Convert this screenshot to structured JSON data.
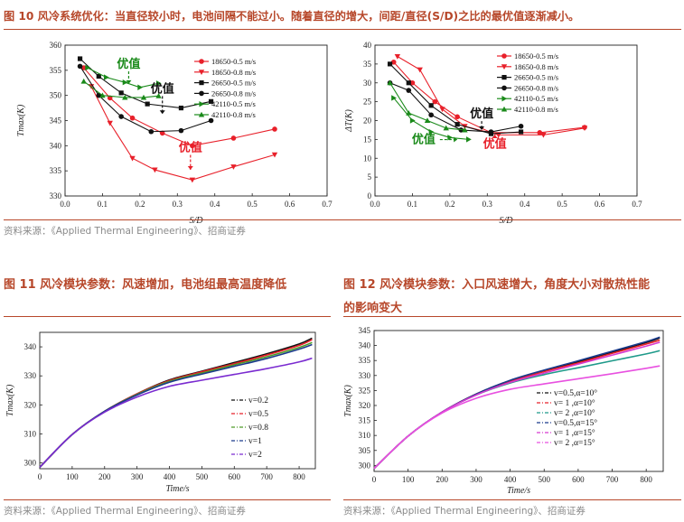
{
  "fig10": {
    "title": "图 10  风冷系统优化：当直径较小时，电池间隔不能过小。随着直径的增大，间距/直径(S/D)之比的最优值逐渐减小。",
    "source": "资料来源：《Applied Thermal Engineering》、招商证券"
  },
  "fig11": {
    "title": "图 11 风冷模块参数：风速增加，电池组最高温度降低",
    "source": "资料来源：《Applied Thermal Engineering》、招商证券"
  },
  "fig12": {
    "title_line1": "图 12 风冷模块参数：入口风速增大，角度大小对散热性能",
    "title_line2": "的影响变大",
    "source": "资料来源：《Applied Thermal Engineering》、招商证券"
  },
  "chart_data": [
    {
      "id": "c10a",
      "type": "line",
      "xlabel": "S/D",
      "ylabel": "Tmax(K)",
      "xlim": [
        0,
        0.7
      ],
      "ylim": [
        330,
        360
      ],
      "xticks": [
        0.0,
        0.1,
        0.2,
        0.3,
        0.4,
        0.5,
        0.6,
        0.7
      ],
      "xtick_labels": [
        "0.0",
        "0.1",
        "0.2",
        "0.3",
        "0.4",
        "0.5",
        "0.6",
        "0.7"
      ],
      "yticks": [
        330,
        335,
        340,
        345,
        350,
        355,
        360
      ],
      "ytick_labels": [
        "330",
        "335",
        "340",
        "345",
        "350",
        "355",
        "360"
      ],
      "annotations": [
        {
          "text": "优值",
          "x": 0.17,
          "y": 355.5,
          "color": "#1a8a1a",
          "arrow_to_y": 352.3
        },
        {
          "text": "优值",
          "x": 0.26,
          "y": 350.6,
          "color": "#111111",
          "arrow_to_y": 346.3
        },
        {
          "text": "优值",
          "x": 0.335,
          "y": 338.9,
          "color": "#e8202a",
          "arrow_to_y": 335.2
        }
      ],
      "series": [
        {
          "name": "18650-0.5 m/s",
          "color": "#e8202a",
          "marker": "circle",
          "x": [
            0.05,
            0.12,
            0.18,
            0.26,
            0.34,
            0.45,
            0.56
          ],
          "y": [
            355.5,
            349.5,
            345.5,
            342.5,
            340.0,
            341.5,
            343.3
          ]
        },
        {
          "name": "18650-0.8 m/s",
          "color": "#e8202a",
          "marker": "tri-down",
          "x": [
            0.07,
            0.12,
            0.18,
            0.24,
            0.34,
            0.45,
            0.56
          ],
          "y": [
            351.8,
            344.5,
            337.5,
            335.2,
            333.2,
            335.8,
            338.2
          ]
        },
        {
          "name": "26650-0.5 m/s",
          "color": "#111111",
          "marker": "square",
          "x": [
            0.04,
            0.09,
            0.15,
            0.22,
            0.31,
            0.39
          ],
          "y": [
            357.3,
            353.8,
            350.5,
            348.3,
            347.5,
            348.8
          ]
        },
        {
          "name": "26650-0.8 m/s",
          "color": "#111111",
          "marker": "circle",
          "x": [
            0.04,
            0.09,
            0.15,
            0.23,
            0.31,
            0.39
          ],
          "y": [
            355.8,
            350.0,
            345.8,
            342.8,
            343.0,
            345.0
          ]
        },
        {
          "name": "42110-0.5 m/s",
          "color": "#1a8a1a",
          "marker": "tri-right",
          "x": [
            0.06,
            0.11,
            0.16,
            0.2,
            0.25
          ],
          "y": [
            355.5,
            353.6,
            352.6,
            351.6,
            352.4
          ]
        },
        {
          "name": "42110-0.8 m/s",
          "color": "#1a8a1a",
          "marker": "tri-up",
          "x": [
            0.05,
            0.1,
            0.16,
            0.21,
            0.25
          ],
          "y": [
            352.8,
            350.0,
            349.6,
            349.6,
            349.9
          ]
        }
      ]
    },
    {
      "id": "c10b",
      "type": "line",
      "xlabel": "S/D",
      "ylabel": "ΔT(K)",
      "xlim": [
        0,
        0.7
      ],
      "ylim": [
        0,
        40
      ],
      "xticks": [
        0.0,
        0.1,
        0.2,
        0.3,
        0.4,
        0.5,
        0.6,
        0.7
      ],
      "xtick_labels": [
        "0.0",
        "0.1",
        "0.2",
        "0.3",
        "0.4",
        "0.5",
        "0.6",
        "0.7"
      ],
      "yticks": [
        0,
        5,
        10,
        15,
        20,
        25,
        30,
        35,
        40
      ],
      "ytick_labels": [
        "0",
        "5",
        "10",
        "15",
        "20",
        "25",
        "30",
        "35",
        "40"
      ],
      "annotations": [
        {
          "text": "优值",
          "x": 0.13,
          "y": 14.0,
          "color": "#1a8a1a",
          "arrow_to_x": 0.22
        },
        {
          "text": "优值",
          "x": 0.285,
          "y": 20.8,
          "color": "#111111",
          "arrow_to_y": 17.5
        },
        {
          "text": "优值",
          "x": 0.32,
          "y": 12.8,
          "color": "#e8202a",
          "arrow_to_y": 16.3
        }
      ],
      "series": [
        {
          "name": "18650-0.5 m/s",
          "color": "#e8202a",
          "marker": "circle",
          "x": [
            0.05,
            0.1,
            0.16,
            0.22,
            0.31,
            0.44,
            0.56
          ],
          "y": [
            35.5,
            30.0,
            25.0,
            21.0,
            16.8,
            16.8,
            18.2
          ]
        },
        {
          "name": "18650-0.8 m/s",
          "color": "#e8202a",
          "marker": "tri-down",
          "x": [
            0.06,
            0.12,
            0.18,
            0.24,
            0.33,
            0.45,
            0.56
          ],
          "y": [
            37.0,
            33.5,
            23.0,
            18.5,
            16.2,
            16.2,
            18.0
          ]
        },
        {
          "name": "26650-0.5 m/s",
          "color": "#111111",
          "marker": "square",
          "x": [
            0.04,
            0.09,
            0.15,
            0.22,
            0.31,
            0.39
          ],
          "y": [
            35.0,
            30.0,
            24.0,
            19.0,
            16.5,
            17.0
          ]
        },
        {
          "name": "26650-0.8 m/s",
          "color": "#111111",
          "marker": "circle",
          "x": [
            0.04,
            0.09,
            0.15,
            0.23,
            0.31,
            0.39
          ],
          "y": [
            30.0,
            28.0,
            21.5,
            17.5,
            17.0,
            18.5
          ]
        },
        {
          "name": "42110-0.5 m/s",
          "color": "#1a8a1a",
          "marker": "tri-right",
          "x": [
            0.05,
            0.1,
            0.15,
            0.2,
            0.25
          ],
          "y": [
            26.0,
            20.0,
            17.0,
            15.5,
            15.0
          ]
        },
        {
          "name": "42110-0.8 m/s",
          "color": "#1a8a1a",
          "marker": "tri-up",
          "x": [
            0.04,
            0.09,
            0.14,
            0.19,
            0.24
          ],
          "y": [
            30.0,
            22.0,
            20.0,
            18.0,
            17.5
          ]
        }
      ]
    },
    {
      "id": "c11",
      "type": "line",
      "xlabel": "Time/s",
      "ylabel": "Tmax(K)",
      "xlim": [
        0,
        850
      ],
      "ylim": [
        298,
        345
      ],
      "xticks": [
        0,
        100,
        200,
        300,
        400,
        500,
        600,
        700,
        800
      ],
      "xtick_labels": [
        "0",
        "100",
        "200",
        "300",
        "400",
        "500",
        "600",
        "700",
        "800"
      ],
      "yticks": [
        300,
        310,
        320,
        330,
        340
      ],
      "ytick_labels": [
        "300",
        "310",
        "320",
        "330",
        "340"
      ],
      "series": [
        {
          "name": "v=0.2",
          "color": "#111111",
          "dash": "dash-dot",
          "x": [
            0,
            100,
            200,
            300,
            400,
            500,
            600,
            700,
            800,
            840
          ],
          "y": [
            298.5,
            309.8,
            317.8,
            323.8,
            328.6,
            331.6,
            334.6,
            337.6,
            341.0,
            343.0
          ]
        },
        {
          "name": "v=0.5",
          "color": "#e8202a",
          "dash": "dash-dot",
          "x": [
            0,
            100,
            200,
            300,
            400,
            500,
            600,
            700,
            800,
            840
          ],
          "y": [
            298.5,
            309.8,
            317.8,
            323.8,
            328.4,
            331.4,
            334.2,
            337.2,
            340.5,
            342.5
          ]
        },
        {
          "name": "v=0.8",
          "color": "#4d9a28",
          "dash": "dash-dot",
          "x": [
            0,
            100,
            200,
            300,
            400,
            500,
            600,
            700,
            800,
            840
          ],
          "y": [
            298.5,
            309.8,
            317.8,
            323.6,
            328.1,
            331.0,
            333.8,
            336.6,
            339.8,
            341.5
          ]
        },
        {
          "name": "v=1",
          "color": "#1b3a8c",
          "dash": "dash-dot",
          "x": [
            0,
            100,
            200,
            300,
            400,
            500,
            600,
            700,
            800,
            840
          ],
          "y": [
            298.5,
            309.8,
            317.8,
            323.4,
            327.8,
            330.6,
            333.3,
            336.0,
            339.2,
            340.8
          ]
        },
        {
          "name": "v=2",
          "color": "#7a2bd0",
          "dash": "dash-dot",
          "x": [
            0,
            100,
            200,
            300,
            400,
            500,
            600,
            700,
            800,
            840
          ],
          "y": [
            298.5,
            309.8,
            317.5,
            322.7,
            326.4,
            328.5,
            330.5,
            332.5,
            334.8,
            336.1
          ]
        }
      ]
    },
    {
      "id": "c12",
      "type": "line",
      "xlabel": "Time/s",
      "ylabel": "Tmax(K)",
      "xlim": [
        0,
        850
      ],
      "ylim": [
        298,
        345
      ],
      "xticks": [
        0,
        100,
        200,
        300,
        400,
        500,
        600,
        700,
        800
      ],
      "xtick_labels": [
        "0",
        "100",
        "200",
        "300",
        "400",
        "500",
        "600",
        "700",
        "800"
      ],
      "yticks": [
        300,
        305,
        310,
        315,
        320,
        325,
        330,
        335,
        340,
        345
      ],
      "ytick_labels": [
        "300",
        "305",
        "310",
        "315",
        "320",
        "325",
        "330",
        "335",
        "340",
        "345"
      ],
      "series": [
        {
          "name": "v=0.5,α=10°",
          "color": "#111111",
          "dash": "dash-dot",
          "x": [
            0,
            100,
            200,
            300,
            400,
            500,
            600,
            700,
            800,
            840
          ],
          "y": [
            299.0,
            309.8,
            317.8,
            323.8,
            328.3,
            331.6,
            334.6,
            337.8,
            341.0,
            342.5
          ]
        },
        {
          "name": "v= 1 ,α=10°",
          "color": "#e8202a",
          "dash": "dash-dot",
          "x": [
            0,
            100,
            200,
            300,
            400,
            500,
            600,
            700,
            800,
            840
          ],
          "y": [
            299.0,
            309.8,
            317.8,
            323.8,
            328.1,
            331.3,
            334.2,
            337.4,
            340.5,
            341.8
          ]
        },
        {
          "name": "v= 2 ,α=10°",
          "color": "#1f9a8a",
          "dash": "dash-dot",
          "x": [
            0,
            100,
            200,
            300,
            400,
            500,
            600,
            700,
            800,
            840
          ],
          "y": [
            299.0,
            309.8,
            317.8,
            323.5,
            327.5,
            330.3,
            332.6,
            334.9,
            337.2,
            338.3
          ]
        },
        {
          "name": "v=0.5,α=15°",
          "color": "#1b3a8c",
          "dash": "dash-dot",
          "x": [
            0,
            100,
            200,
            300,
            400,
            500,
            600,
            700,
            800,
            840
          ],
          "y": [
            299.0,
            309.8,
            317.8,
            323.8,
            328.4,
            331.8,
            334.9,
            338.1,
            341.3,
            342.8
          ]
        },
        {
          "name": "v= 1 ,α=15°",
          "color": "#d63ad0",
          "dash": "dash-dot",
          "x": [
            0,
            100,
            200,
            300,
            400,
            500,
            600,
            700,
            800,
            840
          ],
          "y": [
            299.0,
            309.8,
            317.8,
            323.5,
            327.7,
            330.8,
            333.8,
            336.8,
            339.8,
            341.1
          ]
        },
        {
          "name": "v= 2 ,α=15°",
          "color": "#e850e0",
          "dash": "dash-dot",
          "x": [
            0,
            100,
            200,
            300,
            400,
            500,
            600,
            700,
            800,
            840
          ],
          "y": [
            299.0,
            309.8,
            317.5,
            322.4,
            325.4,
            327.2,
            328.9,
            330.6,
            332.4,
            333.2
          ]
        }
      ]
    }
  ]
}
